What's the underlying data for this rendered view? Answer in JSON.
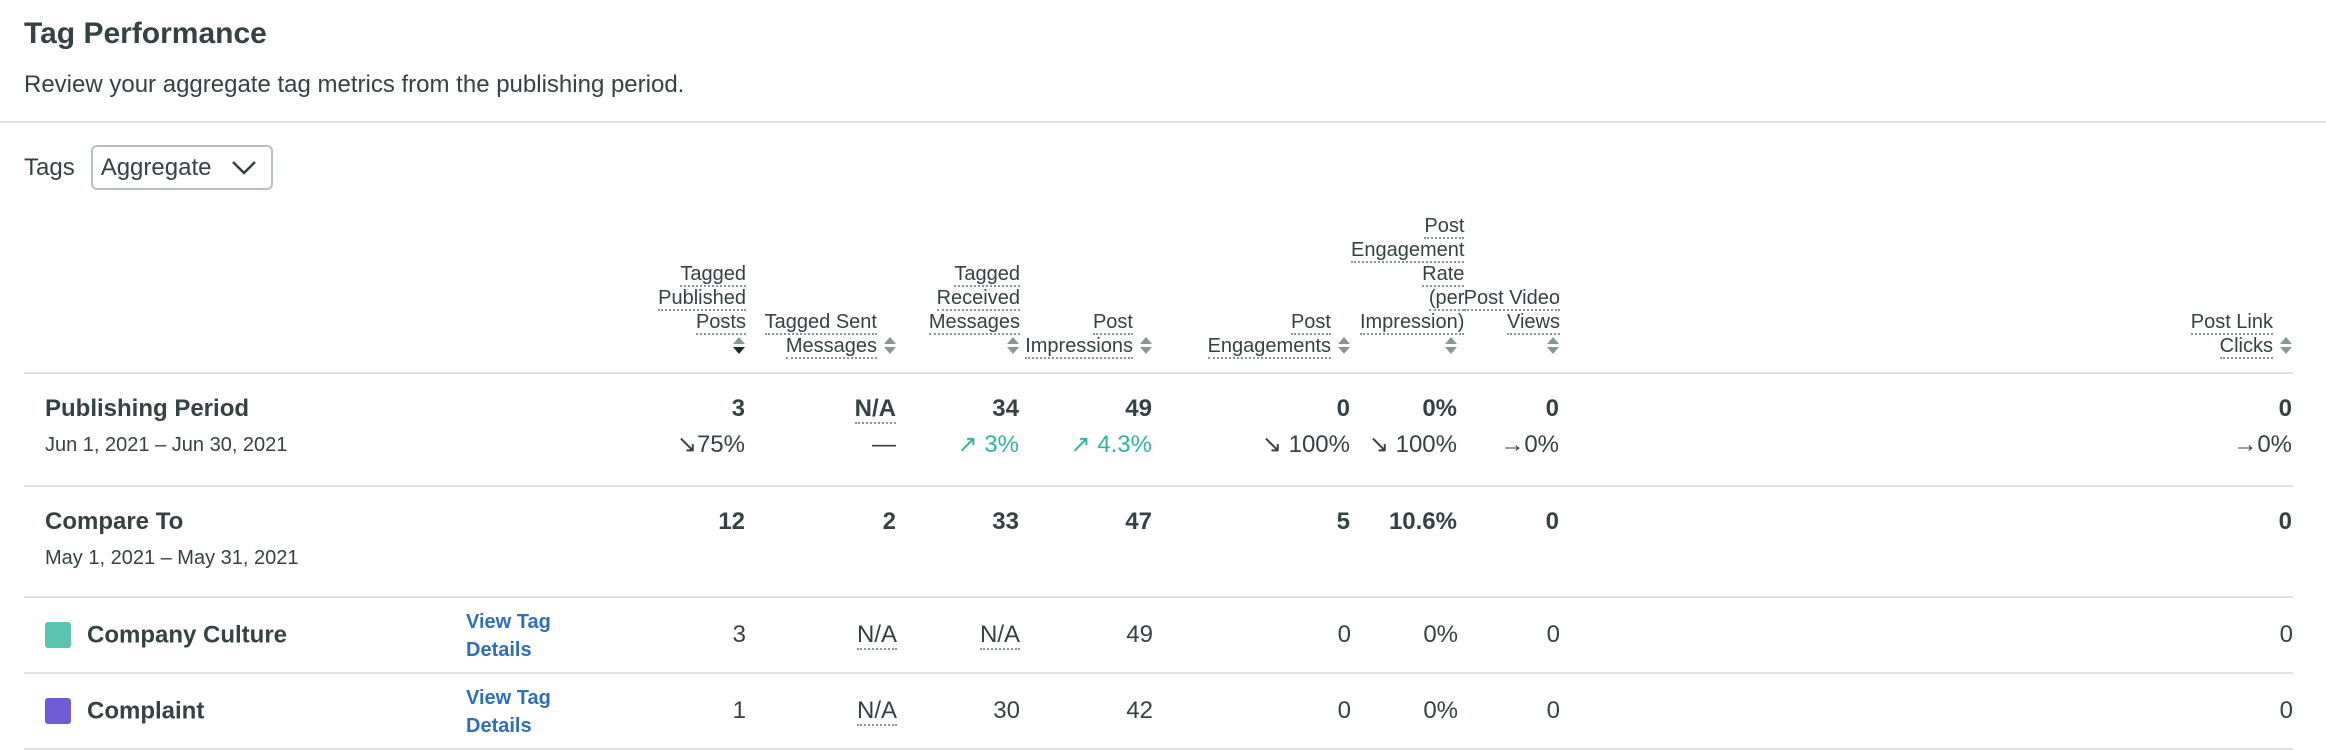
{
  "header": {
    "title": "Tag Performance",
    "subtitle": "Review your aggregate tag metrics from the publishing period."
  },
  "filter": {
    "label": "Tags",
    "selected": "Aggregate"
  },
  "columns": [
    {
      "line1": "Tagged",
      "line2": "Published Posts",
      "sort": "desc"
    },
    {
      "line1": "Tagged Sent",
      "line2": "Messages",
      "sort": "none"
    },
    {
      "line1": "Tagged Received",
      "line2": "Messages",
      "sort": "none"
    },
    {
      "line1": "Post",
      "line2": "Impressions",
      "sort": "none"
    },
    {
      "line1": "Post",
      "line2": "Engagements",
      "sort": "none"
    },
    {
      "line1": "Post Engagement Rate",
      "line2": "(per Impression)",
      "sort": "none"
    },
    {
      "line1": "Post Video",
      "line2": "Views",
      "sort": "none"
    },
    {
      "line1": "Post Link",
      "line2": "Clicks",
      "sort": "none"
    }
  ],
  "period": {
    "name": "Publishing Period",
    "dates": "Jun 1, 2021 – Jun 30, 2021",
    "values": [
      "3",
      "N/A",
      "34",
      "49",
      "0",
      "0%",
      "0",
      "0"
    ],
    "deltas": [
      {
        "arrow": "↘",
        "text": "75%",
        "trend": "down"
      },
      {
        "arrow": "",
        "text": "—",
        "trend": "flat"
      },
      {
        "arrow": "↗",
        "text": " 3%",
        "trend": "up"
      },
      {
        "arrow": "↗",
        "text": " 4.3%",
        "trend": "up"
      },
      {
        "arrow": "↘",
        "text": " 100%",
        "trend": "down"
      },
      {
        "arrow": "↘",
        "text": " 100%",
        "trend": "down"
      },
      {
        "arrow": "→",
        "text": "0%",
        "trend": "flat"
      },
      {
        "arrow": "→",
        "text": "0%",
        "trend": "flat"
      }
    ]
  },
  "compare": {
    "name": "Compare To",
    "dates": "May 1, 2021 – May 31, 2021",
    "values": [
      "12",
      "2",
      "33",
      "47",
      "5",
      "10.6%",
      "0",
      "0"
    ]
  },
  "tags": [
    {
      "name": "Company Culture",
      "color": "#5bc4b1",
      "link": "View Tag Details",
      "values": [
        "3",
        "N/A",
        "N/A",
        "49",
        "0",
        "0%",
        "0",
        "0"
      ]
    },
    {
      "name": "Complaint",
      "color": "#6f5bd3",
      "link": "View Tag Details",
      "values": [
        "1",
        "N/A",
        "30",
        "42",
        "0",
        "0%",
        "0",
        "0"
      ]
    }
  ]
}
